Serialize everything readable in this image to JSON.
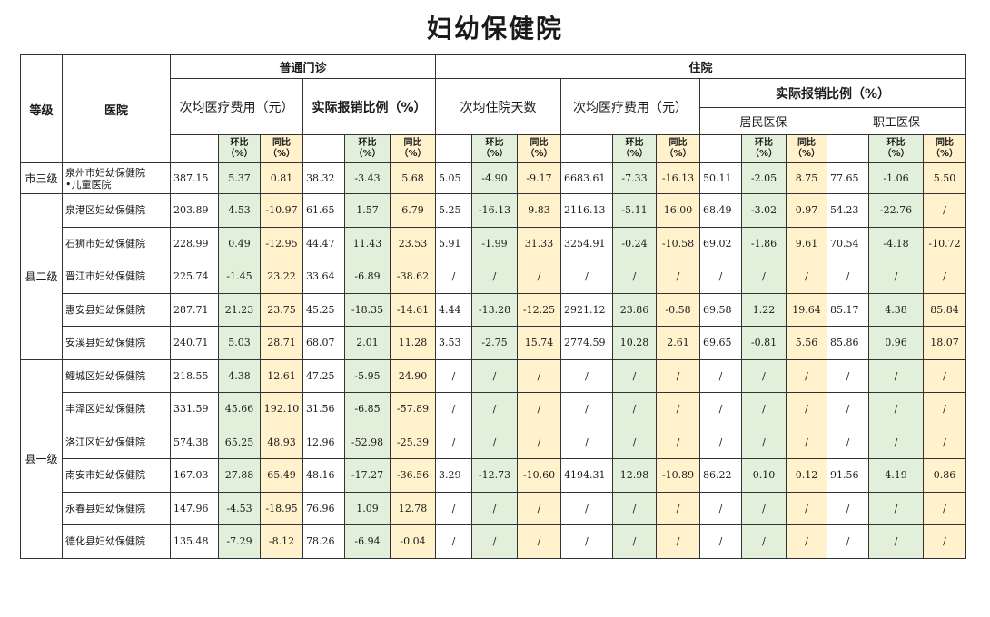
{
  "title": "妇幼保健院",
  "headers": {
    "grade": "等级",
    "hospital": "医院",
    "outpatient": "普通门诊",
    "inpatient": "住院",
    "avg_cost": "次均医疗费用（元）",
    "actual_ratio": "实际报销比例（%）",
    "avg_days": "次均住院天数",
    "resident": "居民医保",
    "employee": "职工医保",
    "hb1": "环比",
    "tb1": "同比",
    "pct": "（%）"
  },
  "groups": [
    {
      "grade": "市三级",
      "rows": [
        {
          "name": "泉州市妇幼保健院\n•儿童医院",
          "v": [
            "387.15",
            "5.37",
            "0.81",
            "38.32",
            "-3.43",
            "5.68",
            "5.05",
            "-4.90",
            "-9.17",
            "6683.61",
            "-7.33",
            "-16.13",
            "50.11",
            "-2.05",
            "8.75",
            "77.65",
            "-1.06",
            "5.50"
          ]
        }
      ]
    },
    {
      "grade": "县二级",
      "rows": [
        {
          "name": "泉港区妇幼保健院",
          "v": [
            "203.89",
            "4.53",
            "-10.97",
            "61.65",
            "1.57",
            "6.79",
            "5.25",
            "-16.13",
            "9.83",
            "2116.13",
            "-5.11",
            "16.00",
            "68.49",
            "-3.02",
            "0.97",
            "54.23",
            "-22.76",
            "/"
          ]
        },
        {
          "name": "石狮市妇幼保健院",
          "v": [
            "228.99",
            "0.49",
            "-12.95",
            "44.47",
            "11.43",
            "23.53",
            "5.91",
            "-1.99",
            "31.33",
            "3254.91",
            "-0.24",
            "-10.58",
            "69.02",
            "-1.86",
            "9.61",
            "70.54",
            "-4.18",
            "-10.72"
          ]
        },
        {
          "name": "晋江市妇幼保健院",
          "v": [
            "225.74",
            "-1.45",
            "23.22",
            "33.64",
            "-6.89",
            "-38.62",
            "/",
            "/",
            "/",
            "/",
            "/",
            "/",
            "/",
            "/",
            "/",
            "/",
            "/",
            "/"
          ]
        },
        {
          "name": "惠安县妇幼保健院",
          "v": [
            "287.71",
            "21.23",
            "23.75",
            "45.25",
            "-18.35",
            "-14.61",
            "4.44",
            "-13.28",
            "-12.25",
            "2921.12",
            "23.86",
            "-0.58",
            "69.58",
            "1.22",
            "19.64",
            "85.17",
            "4.38",
            "85.84"
          ]
        },
        {
          "name": "安溪县妇幼保健院",
          "v": [
            "240.71",
            "5.03",
            "28.71",
            "68.07",
            "2.01",
            "11.28",
            "3.53",
            "-2.75",
            "15.74",
            "2774.59",
            "10.28",
            "2.61",
            "69.65",
            "-0.81",
            "5.56",
            "85.86",
            "0.96",
            "18.07"
          ]
        }
      ]
    },
    {
      "grade": "县一级",
      "rows": [
        {
          "name": "鲤城区妇幼保健院",
          "v": [
            "218.55",
            "4.38",
            "12.61",
            "47.25",
            "-5.95",
            "24.90",
            "/",
            "/",
            "/",
            "/",
            "/",
            "/",
            "/",
            "/",
            "/",
            "/",
            "/",
            "/"
          ]
        },
        {
          "name": "丰泽区妇幼保健院",
          "v": [
            "331.59",
            "45.66",
            "192.10",
            "31.56",
            "-6.85",
            "-57.89",
            "/",
            "/",
            "/",
            "/",
            "/",
            "/",
            "/",
            "/",
            "/",
            "/",
            "/",
            "/"
          ]
        },
        {
          "name": "洛江区妇幼保健院",
          "v": [
            "574.38",
            "65.25",
            "48.93",
            "12.96",
            "-52.98",
            "-25.39",
            "/",
            "/",
            "/",
            "/",
            "/",
            "/",
            "/",
            "/",
            "/",
            "/",
            "/",
            "/"
          ]
        },
        {
          "name": "南安市妇幼保健院",
          "v": [
            "167.03",
            "27.88",
            "65.49",
            "48.16",
            "-17.27",
            "-36.56",
            "3.29",
            "-12.73",
            "-10.60",
            "4194.31",
            "12.98",
            "-10.89",
            "86.22",
            "0.10",
            "0.12",
            "91.56",
            "4.19",
            "0.86"
          ]
        },
        {
          "name": "永春县妇幼保健院",
          "v": [
            "147.96",
            "-4.53",
            "-18.95",
            "76.96",
            "1.09",
            "12.78",
            "/",
            "/",
            "/",
            "/",
            "/",
            "/",
            "/",
            "/",
            "/",
            "/",
            "/",
            "/"
          ]
        },
        {
          "name": "德化县妇幼保健院",
          "v": [
            "135.48",
            "-7.29",
            "-8.12",
            "78.26",
            "-6.94",
            "-0.04",
            "/",
            "/",
            "/",
            "/",
            "/",
            "/",
            "/",
            "/",
            "/",
            "/",
            "/",
            "/"
          ]
        }
      ]
    }
  ]
}
